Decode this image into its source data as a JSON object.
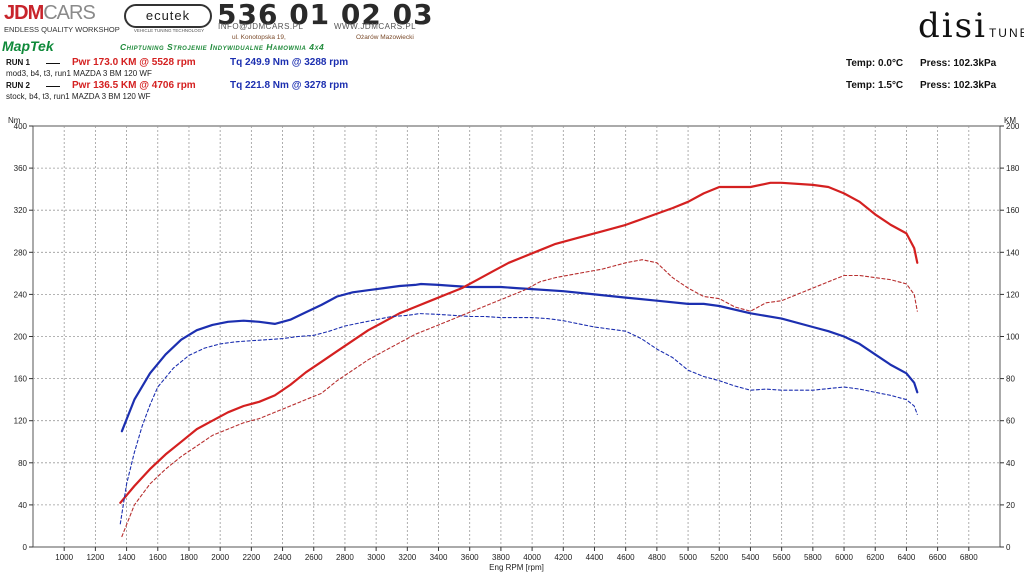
{
  "header": {
    "jdm_brand": "JDM",
    "jdm_brand2": "CARS",
    "jdm_tagline": "ENDLESS QUALITY WORKSHOP",
    "ecutek": "ecutek",
    "ecutek_tagline": "VEHICLE TUNING TECHNOLOGY",
    "phone": "536 01 02 03",
    "email": "INFO@JDMCARS.PL",
    "website": "WWW.JDMCARS.PL",
    "address": "ul. Konotopska 19,",
    "city": "Ożarów Mazowiecki",
    "maptek": "MapTek",
    "slogan": "Chiptuning Strojenie Indywidualne Hamownia 4x4",
    "disi_main": "disi",
    "disi_sub": "TUNE"
  },
  "runs": [
    {
      "label": "RUN 1",
      "pwr": "Pwr  173.0 KM @ 5528 rpm",
      "tq": "Tq 249.9 Nm @ 3288 rpm",
      "desc": "mod3, b4, t3, run1 MAZDA 3 BM 120 WF",
      "temp": "Temp: 0.0°C",
      "press": "Press: 102.3kPa"
    },
    {
      "label": "RUN 2",
      "pwr": "Pwr  136.5 KM @ 4706 rpm",
      "tq": "Tq 221.8 Nm @ 3278 rpm",
      "desc": "stock, b4, t3, run1 MAZDA 3 BM 120 WF",
      "temp": "Temp: 1.5°C",
      "press": "Press: 102.3kPa"
    }
  ],
  "chart_data": {
    "type": "line",
    "title": "",
    "xlabel": "Eng RPM [rpm]",
    "ylabel_left": "Nm",
    "ylabel_right": "KM",
    "xlim": [
      800,
      7000
    ],
    "ylim_left": [
      0,
      400
    ],
    "ylim_right": [
      0,
      200
    ],
    "grid": true,
    "x_ticks": [
      1000,
      1200,
      1400,
      1600,
      1800,
      2000,
      2200,
      2400,
      2600,
      2800,
      3000,
      3200,
      3400,
      3600,
      3800,
      4000,
      4200,
      4400,
      4600,
      4800,
      5000,
      5200,
      5400,
      5600,
      5800,
      6000,
      6200,
      6400,
      6600,
      6800
    ],
    "y_ticks_left": [
      0,
      40,
      80,
      120,
      160,
      200,
      240,
      280,
      320,
      360,
      400
    ],
    "y_ticks_right": [
      0,
      20,
      40,
      60,
      80,
      100,
      120,
      140,
      160,
      180,
      200
    ],
    "series": [
      {
        "name": "RUN 1",
        "quantity": "torque",
        "axis": "left",
        "color": "#1c2fb0",
        "style": "solid",
        "points": [
          [
            1370,
            110
          ],
          [
            1450,
            140
          ],
          [
            1550,
            165
          ],
          [
            1650,
            183
          ],
          [
            1750,
            197
          ],
          [
            1850,
            206
          ],
          [
            1950,
            211
          ],
          [
            2050,
            214
          ],
          [
            2150,
            215
          ],
          [
            2250,
            214
          ],
          [
            2350,
            212
          ],
          [
            2450,
            216
          ],
          [
            2550,
            223
          ],
          [
            2650,
            230
          ],
          [
            2750,
            238
          ],
          [
            2850,
            242
          ],
          [
            2950,
            244
          ],
          [
            3050,
            246
          ],
          [
            3150,
            248
          ],
          [
            3250,
            249
          ],
          [
            3288,
            249.9
          ],
          [
            3400,
            249
          ],
          [
            3500,
            248
          ],
          [
            3600,
            247
          ],
          [
            3700,
            247
          ],
          [
            3800,
            247
          ],
          [
            3900,
            246
          ],
          [
            4000,
            245
          ],
          [
            4200,
            243
          ],
          [
            4400,
            240
          ],
          [
            4600,
            237
          ],
          [
            4800,
            234
          ],
          [
            5000,
            231
          ],
          [
            5100,
            231
          ],
          [
            5200,
            229
          ],
          [
            5400,
            222
          ],
          [
            5600,
            217
          ],
          [
            5800,
            209
          ],
          [
            5900,
            205
          ],
          [
            6000,
            200
          ],
          [
            6100,
            193
          ],
          [
            6200,
            183
          ],
          [
            6300,
            173
          ],
          [
            6400,
            165
          ],
          [
            6450,
            156
          ],
          [
            6470,
            147
          ]
        ]
      },
      {
        "name": "RUN 1",
        "quantity": "power",
        "axis": "right",
        "color": "#d42020",
        "style": "solid",
        "points": [
          [
            1360,
            21
          ],
          [
            1450,
            29
          ],
          [
            1550,
            37
          ],
          [
            1650,
            44
          ],
          [
            1750,
            50
          ],
          [
            1850,
            56
          ],
          [
            1950,
            60
          ],
          [
            2050,
            64
          ],
          [
            2150,
            67
          ],
          [
            2250,
            69
          ],
          [
            2350,
            72
          ],
          [
            2450,
            77
          ],
          [
            2550,
            83
          ],
          [
            2650,
            88
          ],
          [
            2750,
            93
          ],
          [
            2850,
            98
          ],
          [
            2950,
            103
          ],
          [
            3050,
            107
          ],
          [
            3150,
            111
          ],
          [
            3250,
            114
          ],
          [
            3350,
            117
          ],
          [
            3450,
            120
          ],
          [
            3550,
            123
          ],
          [
            3650,
            127
          ],
          [
            3750,
            131
          ],
          [
            3850,
            135
          ],
          [
            3950,
            138
          ],
          [
            4050,
            141
          ],
          [
            4150,
            144
          ],
          [
            4300,
            147
          ],
          [
            4450,
            150
          ],
          [
            4600,
            153
          ],
          [
            4750,
            157
          ],
          [
            4900,
            161
          ],
          [
            5000,
            164
          ],
          [
            5100,
            168
          ],
          [
            5200,
            171
          ],
          [
            5300,
            171
          ],
          [
            5400,
            171
          ],
          [
            5528,
            173
          ],
          [
            5600,
            173
          ],
          [
            5800,
            172
          ],
          [
            5900,
            171
          ],
          [
            6000,
            168
          ],
          [
            6100,
            164
          ],
          [
            6200,
            158
          ],
          [
            6300,
            153
          ],
          [
            6400,
            149
          ],
          [
            6450,
            142
          ],
          [
            6470,
            135
          ]
        ]
      },
      {
        "name": "RUN 2",
        "quantity": "torque",
        "axis": "left",
        "color": "#1c2fb0",
        "style": "dashed",
        "points": [
          [
            1360,
            22
          ],
          [
            1400,
            60
          ],
          [
            1450,
            90
          ],
          [
            1500,
            115
          ],
          [
            1550,
            135
          ],
          [
            1600,
            152
          ],
          [
            1700,
            170
          ],
          [
            1800,
            182
          ],
          [
            1900,
            189
          ],
          [
            2000,
            193
          ],
          [
            2100,
            195
          ],
          [
            2200,
            196
          ],
          [
            2300,
            197
          ],
          [
            2400,
            198
          ],
          [
            2500,
            200
          ],
          [
            2600,
            201
          ],
          [
            2700,
            205
          ],
          [
            2800,
            210
          ],
          [
            2900,
            213
          ],
          [
            3000,
            216
          ],
          [
            3100,
            219
          ],
          [
            3200,
            220
          ],
          [
            3278,
            221.8
          ],
          [
            3400,
            221
          ],
          [
            3500,
            220
          ],
          [
            3600,
            219
          ],
          [
            3700,
            219
          ],
          [
            3800,
            218
          ],
          [
            3900,
            218
          ],
          [
            4000,
            218
          ],
          [
            4100,
            217
          ],
          [
            4200,
            215
          ],
          [
            4300,
            212
          ],
          [
            4400,
            209
          ],
          [
            4500,
            207
          ],
          [
            4600,
            205
          ],
          [
            4700,
            198
          ],
          [
            4800,
            188
          ],
          [
            4900,
            180
          ],
          [
            5000,
            168
          ],
          [
            5100,
            162
          ],
          [
            5200,
            158
          ],
          [
            5300,
            153
          ],
          [
            5400,
            149
          ],
          [
            5500,
            150
          ],
          [
            5600,
            149
          ],
          [
            5800,
            149
          ],
          [
            6000,
            152
          ],
          [
            6100,
            150
          ],
          [
            6200,
            147
          ],
          [
            6300,
            144
          ],
          [
            6400,
            140
          ],
          [
            6450,
            134
          ],
          [
            6470,
            126
          ]
        ]
      },
      {
        "name": "RUN 2",
        "quantity": "power",
        "axis": "right",
        "color": "#b83030",
        "style": "dashed",
        "points": [
          [
            1370,
            5
          ],
          [
            1450,
            20
          ],
          [
            1550,
            30
          ],
          [
            1650,
            37
          ],
          [
            1750,
            43
          ],
          [
            1850,
            48
          ],
          [
            1950,
            53
          ],
          [
            2050,
            56
          ],
          [
            2150,
            59
          ],
          [
            2250,
            61
          ],
          [
            2350,
            64
          ],
          [
            2450,
            67
          ],
          [
            2550,
            70
          ],
          [
            2650,
            73
          ],
          [
            2750,
            79
          ],
          [
            2850,
            84
          ],
          [
            2950,
            89
          ],
          [
            3050,
            93
          ],
          [
            3150,
            97
          ],
          [
            3250,
            101
          ],
          [
            3350,
            104
          ],
          [
            3450,
            107
          ],
          [
            3550,
            110
          ],
          [
            3650,
            113
          ],
          [
            3750,
            116
          ],
          [
            3850,
            119
          ],
          [
            3950,
            122
          ],
          [
            4050,
            126
          ],
          [
            4150,
            128
          ],
          [
            4300,
            130
          ],
          [
            4450,
            132
          ],
          [
            4600,
            135
          ],
          [
            4706,
            136.5
          ],
          [
            4800,
            135
          ],
          [
            4900,
            128
          ],
          [
            5000,
            123
          ],
          [
            5100,
            119
          ],
          [
            5200,
            118
          ],
          [
            5300,
            114
          ],
          [
            5400,
            112
          ],
          [
            5500,
            116
          ],
          [
            5600,
            117
          ],
          [
            5700,
            120
          ],
          [
            5800,
            123
          ],
          [
            5900,
            126
          ],
          [
            6000,
            129
          ],
          [
            6100,
            129
          ],
          [
            6200,
            128
          ],
          [
            6300,
            127
          ],
          [
            6400,
            125
          ],
          [
            6450,
            120
          ],
          [
            6470,
            112
          ]
        ]
      }
    ]
  }
}
